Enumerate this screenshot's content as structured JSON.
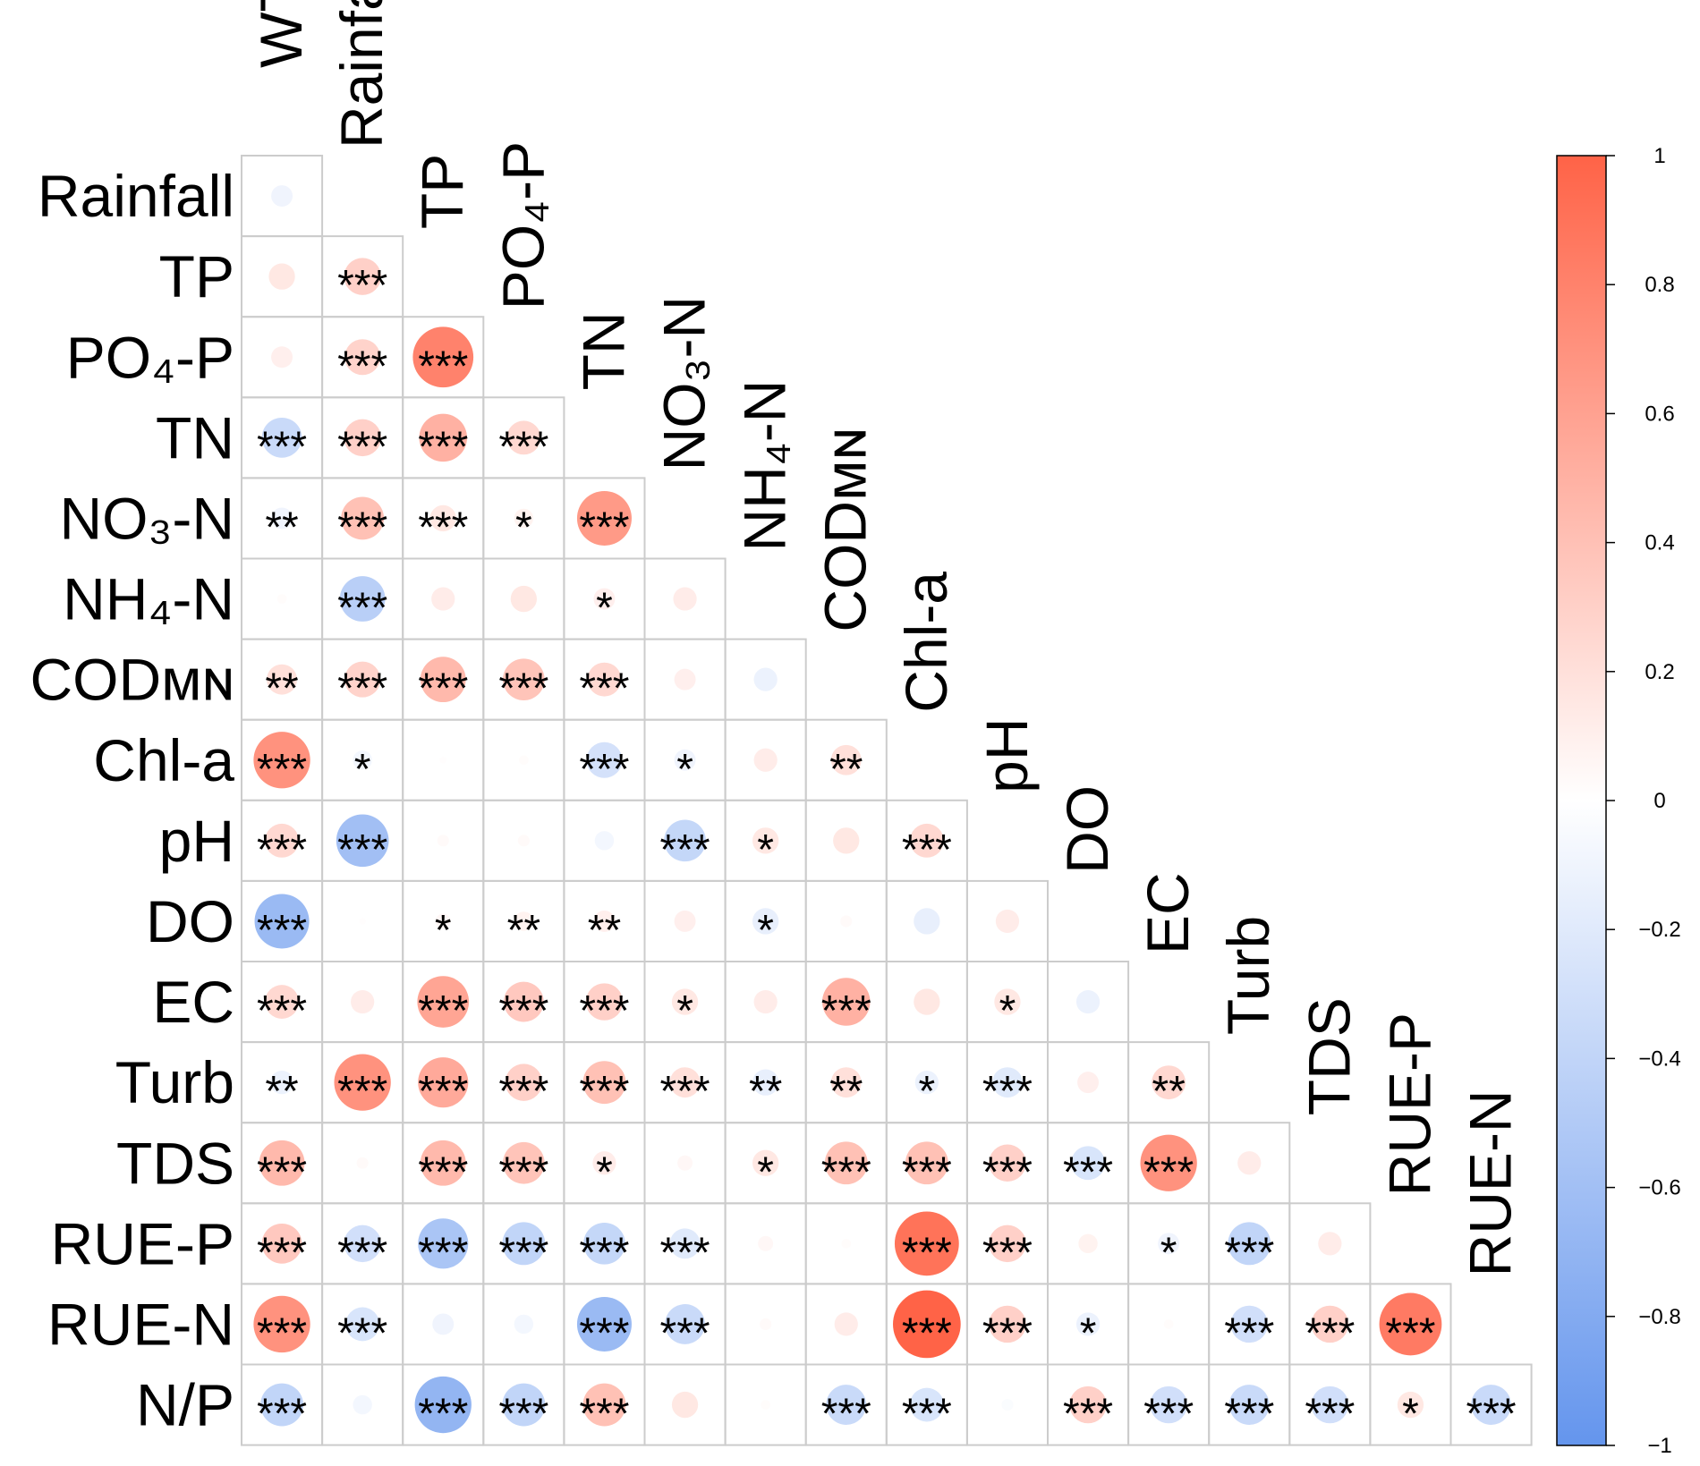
{
  "chart_data": {
    "type": "heatmap",
    "style": "lower-triangle correlation circles with significance stars",
    "row_labels": [
      "Rainfall",
      "TP",
      "PO₄-P",
      "TN",
      "NO₃-N",
      "NH₄-N",
      "CODᴍɴ",
      "Chl-a",
      "pH",
      "DO",
      "EC",
      "Turb",
      "TDS",
      "RUE-P",
      "RUE-N",
      "N/P"
    ],
    "col_labels": [
      "WT",
      "Rainfall",
      "TP",
      "PO₄-P",
      "TN",
      "NO₃-N",
      "NH₄-N",
      "CODᴍɴ",
      "Chl-a",
      "pH",
      "DO",
      "EC",
      "Turb",
      "TDS",
      "RUE-P",
      "RUE-N"
    ],
    "values": [
      [
        -0.1
      ],
      [
        0.15,
        0.3
      ],
      [
        0.1,
        0.28,
        0.8
      ],
      [
        -0.35,
        0.3,
        0.5,
        0.25
      ],
      [
        -0.1,
        0.4,
        0.15,
        0.08,
        0.65
      ],
      [
        0.02,
        -0.45,
        0.12,
        0.15,
        0.1,
        0.12
      ],
      [
        0.2,
        0.28,
        0.45,
        0.38,
        0.25,
        0.1,
        -0.12
      ],
      [
        0.7,
        -0.08,
        0.01,
        0.02,
        -0.28,
        -0.1,
        0.12,
        0.2
      ],
      [
        0.25,
        -0.6,
        0.03,
        0.03,
        -0.08,
        -0.38,
        0.15,
        0.15,
        0.25
      ],
      [
        -0.65,
        0.01,
        0.05,
        0.08,
        0.1,
        0.1,
        -0.15,
        0.03,
        -0.15,
        0.12
      ],
      [
        0.25,
        0.12,
        0.58,
        0.35,
        0.3,
        0.15,
        0.12,
        0.5,
        0.15,
        0.15,
        -0.12
      ],
      [
        -0.12,
        0.7,
        0.55,
        0.3,
        0.4,
        0.2,
        -0.15,
        0.2,
        -0.12,
        -0.2,
        0.1,
        0.25
      ],
      [
        0.45,
        0.03,
        0.45,
        0.38,
        0.12,
        0.05,
        0.15,
        0.4,
        0.4,
        0.3,
        -0.25,
        0.7,
        0.12
      ],
      [
        0.35,
        -0.3,
        -0.55,
        -0.4,
        -0.38,
        -0.2,
        0.05,
        0.02,
        0.9,
        0.3,
        0.08,
        -0.1,
        -0.4,
        0.12
      ],
      [
        0.7,
        -0.25,
        -0.1,
        -0.08,
        -0.65,
        -0.35,
        0.03,
        0.12,
        1.0,
        0.3,
        -0.12,
        0.02,
        -0.3,
        0.3,
        0.85
      ],
      [
        -0.4,
        -0.08,
        -0.7,
        -0.4,
        0.4,
        0.15,
        0.02,
        -0.35,
        -0.25,
        -0.03,
        0.3,
        -0.3,
        -0.35,
        -0.3,
        0.15,
        -0.35
      ]
    ],
    "significance": [
      [
        ""
      ],
      [
        "",
        "***"
      ],
      [
        "",
        "***",
        "***"
      ],
      [
        "***",
        "***",
        "***",
        "***"
      ],
      [
        "**",
        "***",
        "***",
        "*",
        "***"
      ],
      [
        "",
        "***",
        "",
        "",
        "*",
        ""
      ],
      [
        "**",
        "***",
        "***",
        "***",
        "***",
        "",
        ""
      ],
      [
        "***",
        "*",
        "",
        "",
        "***",
        "*",
        "",
        "**"
      ],
      [
        "***",
        "***",
        "",
        "",
        "",
        "***",
        "*",
        "",
        "***"
      ],
      [
        "***",
        "",
        "*",
        "**",
        "**",
        "",
        "*",
        "",
        "",
        ""
      ],
      [
        "***",
        "",
        "***",
        "***",
        "***",
        "*",
        "",
        "***",
        "",
        "*",
        ""
      ],
      [
        "**",
        "***",
        "***",
        "***",
        "***",
        "***",
        "**",
        "**",
        "*",
        "***",
        "",
        "**"
      ],
      [
        "***",
        "",
        "***",
        "***",
        "*",
        "",
        "*",
        "***",
        "***",
        "***",
        "***",
        "***",
        ""
      ],
      [
        "***",
        "***",
        "***",
        "***",
        "***",
        "***",
        "",
        "",
        "***",
        "***",
        "",
        "*",
        "***",
        ""
      ],
      [
        "***",
        "***",
        "",
        "",
        "***",
        "***",
        "",
        "",
        "***",
        "***",
        "*",
        "",
        "***",
        "***",
        "***"
      ],
      [
        "***",
        "",
        "***",
        "***",
        "***",
        "",
        "",
        "***",
        "***",
        "",
        "***",
        "***",
        "***",
        "***",
        "*",
        "***"
      ]
    ],
    "colorbar": {
      "range": [
        -1,
        1
      ],
      "ticks": [
        "1",
        "0.8",
        "0.6",
        "0.4",
        "0.2",
        "0",
        "−0.2",
        "−0.4",
        "−0.6",
        "−0.8",
        "−1"
      ],
      "tick_values": [
        1,
        0.8,
        0.6,
        0.4,
        0.2,
        0,
        -0.2,
        -0.4,
        -0.6,
        -0.8,
        -1
      ],
      "low_color": "#6495ed",
      "mid_color": "#ffffff",
      "high_color": "#ff6347"
    },
    "grid_color": "#cccccc",
    "legend_position": "right"
  }
}
